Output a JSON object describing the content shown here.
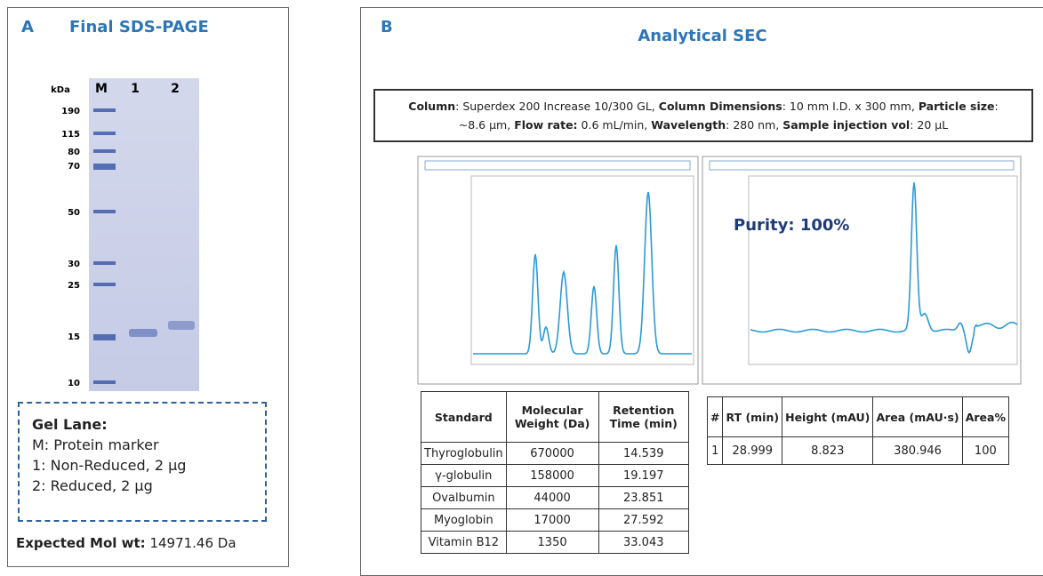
{
  "panel_a": {
    "letter": "A",
    "title": "Final SDS-PAGE",
    "gel_header": [
      "kDa",
      "M",
      "1",
      "2"
    ],
    "marker_kda": [
      190,
      115,
      80,
      70,
      50,
      30,
      25,
      15,
      10
    ],
    "legend": {
      "title": "Gel Lane:",
      "lines": [
        "M: Protein marker",
        "1: Non-Reduced, 2 µg",
        "2: Reduced, 2 µg"
      ]
    },
    "expected": {
      "label": "Expected Mol wt:",
      "value": "14971.46 Da"
    }
  },
  "panel_b": {
    "letter": "B",
    "title": "Analytical SEC",
    "column_info": [
      {
        "label": "Column",
        "value": ": Superdex 200 Increase 10/300 GL, "
      },
      {
        "label": "Column Dimensions",
        "value": ": 10 mm I.D. x 300 mm, "
      },
      {
        "label": "Particle size",
        "value": ": ~8.6 µm, "
      },
      {
        "label": "Flow rate:",
        "value": " 0.6 mL/min, "
      },
      {
        "label": "Wavelength",
        "value": ": 280 nm, "
      },
      {
        "label": "Sample injection vol",
        "value": ": 20 µL"
      }
    ],
    "purity": "Purity: 100%",
    "standards_table": {
      "headers": [
        "Standard",
        "Molecular Weight (Da)",
        "Retention Time (min)"
      ],
      "rows": [
        [
          "Thyroglobulin",
          670000,
          14.539
        ],
        [
          "γ-globulin",
          158000,
          19.197
        ],
        [
          "Ovalbumin",
          44000,
          23.851
        ],
        [
          "Myoglobin",
          17000,
          27.592
        ],
        [
          "Vitamin B12",
          1350,
          33.043
        ]
      ]
    },
    "sample_table": {
      "headers": [
        "#",
        "RT (min)",
        "Height (mAU)",
        "Area (mAU·s)",
        "Area%"
      ],
      "rows": [
        [
          1,
          28.999,
          8.823,
          380.946,
          100
        ]
      ]
    }
  }
}
